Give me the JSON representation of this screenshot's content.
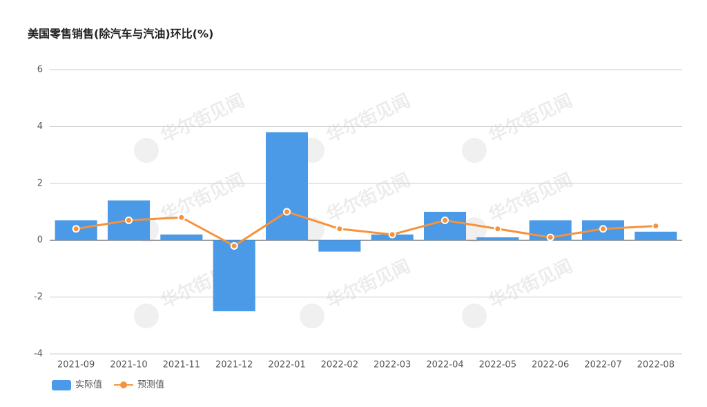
{
  "chart_data": {
    "type": "bar",
    "title": "美国零售销售(除汽车与汽油)环比(%)",
    "watermark": "华尔街见闻",
    "categories": [
      "2021-09",
      "2021-10",
      "2021-11",
      "2021-12",
      "2022-01",
      "2022-02",
      "2022-03",
      "2022-04",
      "2022-05",
      "2022-06",
      "2022-07",
      "2022-08"
    ],
    "series": [
      {
        "name": "实际值",
        "type": "bar",
        "color": "#4a9ae8",
        "values": [
          0.7,
          1.4,
          0.2,
          -2.5,
          3.8,
          -0.4,
          0.2,
          1.0,
          0.1,
          0.7,
          0.7,
          0.3
        ]
      },
      {
        "name": "预测值",
        "type": "line",
        "color": "#f7923a",
        "values": [
          0.4,
          0.7,
          0.8,
          -0.2,
          1.0,
          0.4,
          0.2,
          0.7,
          0.4,
          0.1,
          0.4,
          0.5
        ]
      }
    ],
    "ylim": [
      -4,
      6
    ],
    "yticks": [
      -4,
      -2,
      0,
      2,
      4,
      6
    ],
    "grid": true
  }
}
